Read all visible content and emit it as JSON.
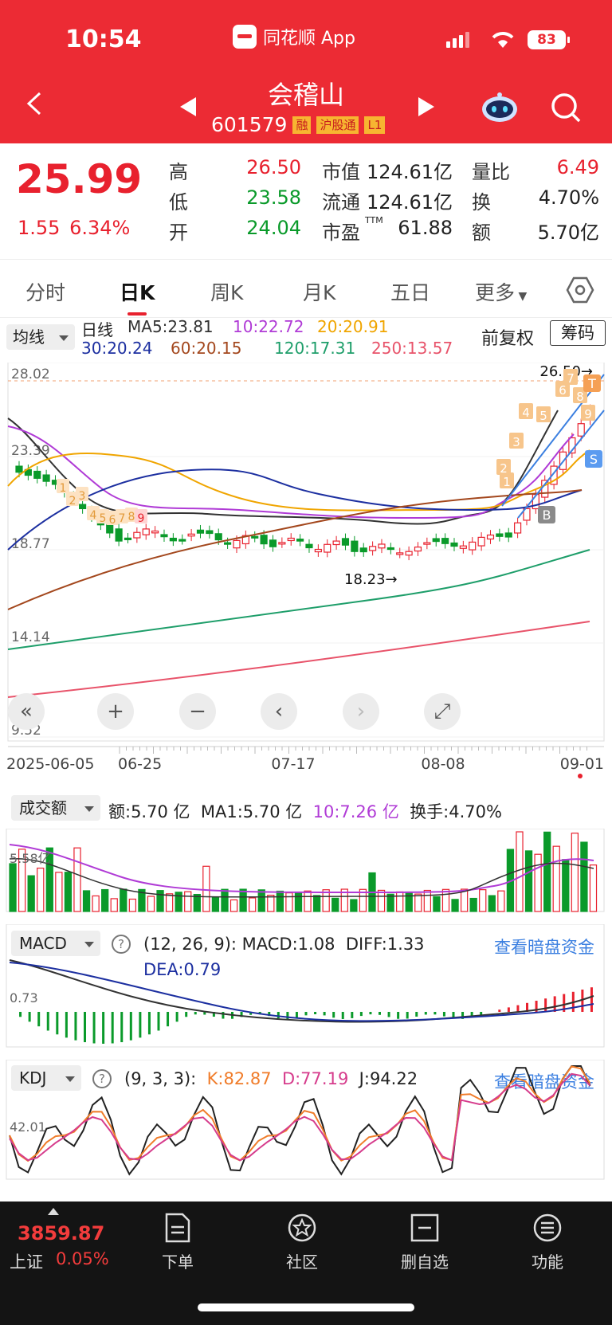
{
  "status": {
    "time": "10:54",
    "app": "同花顺 App",
    "battery": "83"
  },
  "header": {
    "name": "会稽山",
    "code": "601579",
    "tags": [
      "融",
      "沪股通",
      "L1"
    ]
  },
  "quote": {
    "price": "25.99",
    "change": "1.55",
    "change_pct": "6.34%",
    "rows": [
      {
        "l1": "高",
        "v1": "26.50",
        "c1": "red",
        "l2": "市值",
        "v2": "124.61亿",
        "l3": "量比",
        "v3": "6.49",
        "c3": "red"
      },
      {
        "l1": "低",
        "v1": "23.58",
        "c1": "green",
        "l2": "流通",
        "v2": "124.61亿",
        "l3": "换",
        "v3": "4.70%",
        "c3": ""
      },
      {
        "l1": "开",
        "v1": "24.04",
        "c1": "green",
        "l2": "市盈",
        "v2": "61.88",
        "sup": "TTM",
        "l3": "额",
        "v3": "5.70亿",
        "c3": ""
      }
    ]
  },
  "tabs": [
    "分时",
    "日K",
    "周K",
    "月K",
    "五日",
    "更多"
  ],
  "active_tab": "日K",
  "ma": {
    "button": "均线",
    "label": "日线",
    "line1": [
      {
        "t": "MA5:23.81",
        "c": "#333"
      },
      {
        "t": "10:22.72",
        "c": "#b03bd6"
      },
      {
        "t": "20:20.91",
        "c": "#f0a500"
      }
    ],
    "line2": [
      {
        "t": "30:20.24",
        "c": "#1c2fa0"
      },
      {
        "t": "60:20.15",
        "c": "#a3471d"
      },
      {
        "t": "120:17.31",
        "c": "#1e9e6a"
      },
      {
        "t": "250:13.57",
        "c": "#e8536a"
      }
    ],
    "fuquan": "前复权",
    "chouma": "筹码"
  },
  "kchart": {
    "y_labels": [
      "28.02",
      "23.39",
      "18.77",
      "14.14",
      "9.52"
    ],
    "high_mark": "26.50→",
    "low_mark": "18.23→",
    "x_labels": [
      "2025-06-05",
      "06-25",
      "07-17",
      "08-08",
      "09-01"
    ],
    "badge_b": "B",
    "badge_s": "S",
    "badge_t": "T",
    "seq_left": [
      "1",
      "2",
      "3",
      "4",
      "5",
      "6",
      "7",
      "8",
      "9"
    ],
    "seq_right": [
      "1",
      "2",
      "3",
      "4",
      "5",
      "6",
      "7",
      "8",
      "9"
    ]
  },
  "controls": [
    "«",
    "+",
    "−",
    "‹",
    "›",
    "⤢"
  ],
  "volume": {
    "button": "成交额",
    "e": "额:5.70 亿",
    "ma1": "MA1:5.70 亿",
    "ma10": "10:7.26 亿",
    "hs": "换手:4.70%",
    "y_label": "5.58亿"
  },
  "macd": {
    "button": "MACD",
    "params": "(12, 26, 9):",
    "macd": "MACD:1.08",
    "diff": "DIFF:1.33",
    "dea": "DEA:0.79",
    "y_label": "0.73",
    "link": "查看暗盘资金"
  },
  "kdj": {
    "button": "KDJ",
    "params": "(9, 3, 3):",
    "k": "K:82.87",
    "d": "D:77.19",
    "j": "J:94.22",
    "y_label": "42.01",
    "link": "查看暗盘资金"
  },
  "bottom": {
    "index_value": "3859.87",
    "index_name": "上证",
    "index_pct": "0.05%",
    "nav": [
      "下单",
      "社区",
      "删自选",
      "功能"
    ]
  }
}
